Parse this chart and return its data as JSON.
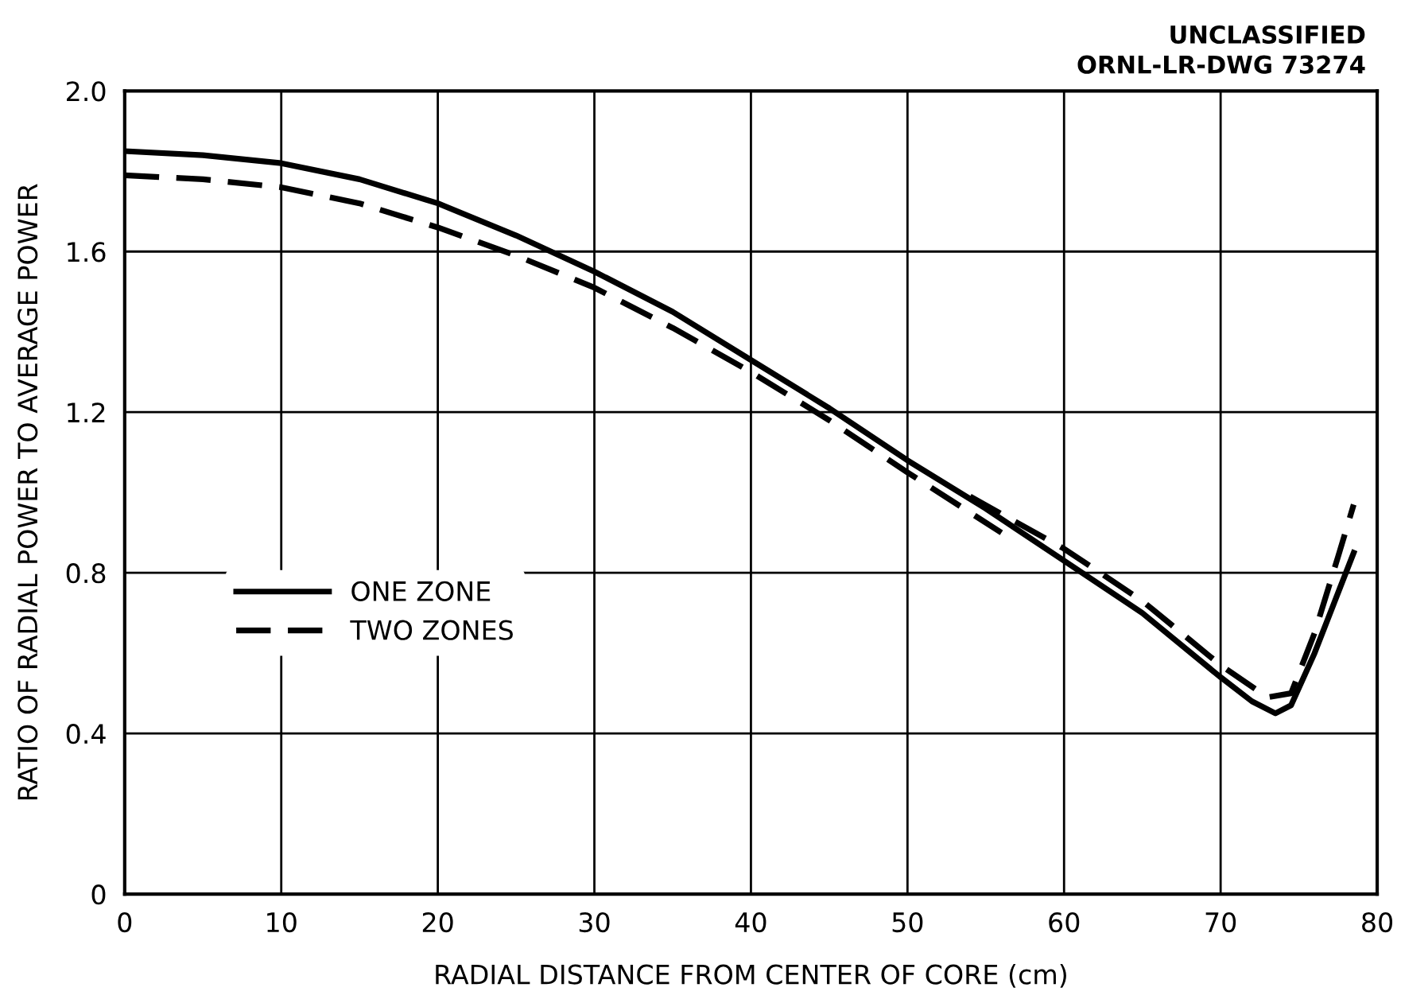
{
  "chart_data": {
    "type": "line",
    "xlabel": "RADIAL DISTANCE FROM CENTER OF CORE (cm)",
    "ylabel": "RATIO OF RADIAL POWER TO AVERAGE POWER",
    "annotations": [
      "UNCLASSIFIED",
      "ORNL-LR-DWG 73274"
    ],
    "xlim": [
      0,
      80
    ],
    "xticks": [
      0,
      10,
      20,
      30,
      40,
      50,
      60,
      70,
      80
    ],
    "ylim": [
      0,
      2.0
    ],
    "yticks": [
      {
        "value": 0,
        "label": "0"
      },
      {
        "value": 0.4,
        "label": "0.4"
      },
      {
        "value": 0.8,
        "label": "0.8"
      },
      {
        "value": 1.2,
        "label": "1.2"
      },
      {
        "value": 1.6,
        "label": "1.6"
      },
      {
        "value": 2.0,
        "label": "2.0"
      }
    ],
    "grid": true,
    "legend": "center left",
    "series": [
      {
        "name": "ONE ZONE",
        "color": "#000000",
        "line_style": "solid",
        "x": [
          0,
          5,
          10,
          15,
          20,
          25,
          30,
          35,
          40,
          45,
          50,
          55,
          60,
          65,
          70,
          72,
          73.5,
          74.5,
          76,
          77.5,
          78.5
        ],
        "values": [
          1.85,
          1.84,
          1.82,
          1.78,
          1.72,
          1.64,
          1.55,
          1.45,
          1.33,
          1.21,
          1.08,
          0.96,
          0.83,
          0.7,
          0.54,
          0.48,
          0.45,
          0.47,
          0.6,
          0.75,
          0.85
        ]
      },
      {
        "name": "TWO ZONES",
        "color": "#000000",
        "line_style": "dashed",
        "x": [
          0,
          5,
          10,
          15,
          20,
          25,
          30,
          35,
          40,
          45,
          50,
          56
        ],
        "values": [
          1.79,
          1.78,
          1.76,
          1.72,
          1.66,
          1.59,
          1.51,
          1.41,
          1.3,
          1.18,
          1.05,
          0.9
        ]
      },
      {
        "color": "#000000",
        "line_style": "dashed",
        "x": [
          54,
          60,
          65,
          70,
          73,
          74.5,
          76,
          77.5,
          78.5
        ],
        "values": [
          0.99,
          0.86,
          0.73,
          0.57,
          0.49,
          0.5,
          0.65,
          0.84,
          0.97
        ]
      }
    ]
  }
}
